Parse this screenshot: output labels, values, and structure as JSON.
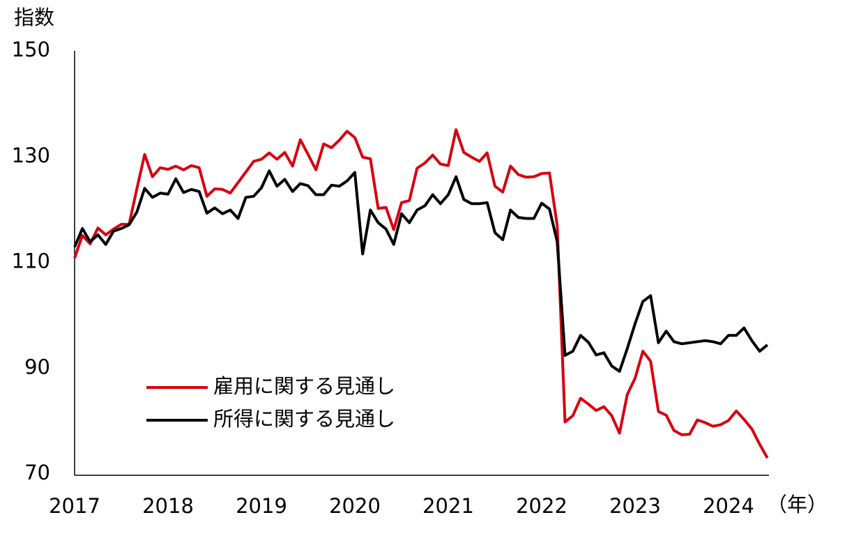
{
  "chart_data": {
    "type": "line",
    "ylabel": "指数",
    "xlabel": "（年）",
    "categories": [
      "2017",
      null,
      null,
      null,
      null,
      null,
      null,
      null,
      null,
      null,
      null,
      null,
      "2018",
      null,
      null,
      null,
      null,
      null,
      null,
      null,
      null,
      null,
      null,
      null,
      "2019",
      null,
      null,
      null,
      null,
      null,
      null,
      null,
      null,
      null,
      null,
      null,
      "2020",
      null,
      null,
      null,
      null,
      null,
      null,
      null,
      null,
      null,
      null,
      null,
      "2021",
      null,
      null,
      null,
      null,
      null,
      null,
      null,
      null,
      null,
      null,
      null,
      "2022",
      null,
      null,
      null,
      null,
      null,
      null,
      null,
      null,
      null,
      null,
      null,
      "2023",
      null,
      null,
      null,
      null,
      null,
      null,
      null,
      null,
      null,
      null,
      null,
      "2024",
      null,
      null,
      null,
      null,
      null
    ],
    "ylim": [
      70,
      150
    ],
    "yticks": [
      70,
      90,
      110,
      130,
      150
    ],
    "grid": false,
    "legend": "lower-left",
    "series": [
      {
        "name": "雇用に関する見通し",
        "color": "#d7000f",
        "values": [
          110.8,
          115.1,
          113.5,
          116.5,
          115.2,
          116.3,
          117.2,
          117.2,
          123.9,
          130.4,
          126.2,
          127.9,
          127.6,
          128.2,
          127.5,
          128.3,
          127.9,
          122.5,
          123.9,
          123.8,
          123.1,
          125.1,
          127.1,
          129.1,
          129.5,
          130.7,
          129.5,
          130.8,
          128.2,
          133.2,
          130.4,
          127.5,
          132.4,
          131.7,
          133.1,
          134.8,
          133.6,
          129.9,
          129.6,
          120.2,
          120.4,
          116.2,
          121.3,
          121.7,
          127.8,
          128.8,
          130.3,
          128.6,
          128.3,
          135.1,
          130.8,
          129.9,
          129.1,
          130.7,
          124.4,
          123.3,
          128.2,
          126.6,
          126.1,
          126.2,
          126.8,
          126.9,
          117.0,
          79.8,
          81.0,
          84.3,
          83.2,
          82.0,
          82.7,
          81.0,
          77.7,
          85.0,
          88.1,
          93.2,
          91.3,
          81.8,
          81.1,
          78.2,
          77.4,
          77.5,
          80.2,
          79.7,
          79.0,
          79.3,
          80.1,
          81.9,
          80.3,
          78.5,
          75.6,
          73.0
        ]
      },
      {
        "name": "所得に関する見通し",
        "color": "#000000",
        "values": [
          112.9,
          116.4,
          113.9,
          115.2,
          113.4,
          115.9,
          116.4,
          117.1,
          119.5,
          124.0,
          122.3,
          123.1,
          122.9,
          125.8,
          123.2,
          123.8,
          123.4,
          119.3,
          120.3,
          119.2,
          119.9,
          118.3,
          122.3,
          122.5,
          124.1,
          127.3,
          124.4,
          125.7,
          123.4,
          124.9,
          124.5,
          122.8,
          122.8,
          124.6,
          124.4,
          125.4,
          127.0,
          111.6,
          119.9,
          117.5,
          116.3,
          113.4,
          119.2,
          117.5,
          119.9,
          120.7,
          122.8,
          121.1,
          122.8,
          126.2,
          121.9,
          121.1,
          121.1,
          121.3,
          115.6,
          114.3,
          119.9,
          118.5,
          118.3,
          118.3,
          121.2,
          120.1,
          113.9,
          92.4,
          93.2,
          96.2,
          94.9,
          92.5,
          92.9,
          90.4,
          89.4,
          93.7,
          98.4,
          102.6,
          103.7,
          94.8,
          97.0,
          95.0,
          94.6,
          94.8,
          95.0,
          95.2,
          95.0,
          94.6,
          96.2,
          96.2,
          97.6,
          95.2,
          93.2,
          94.4
        ]
      }
    ]
  }
}
